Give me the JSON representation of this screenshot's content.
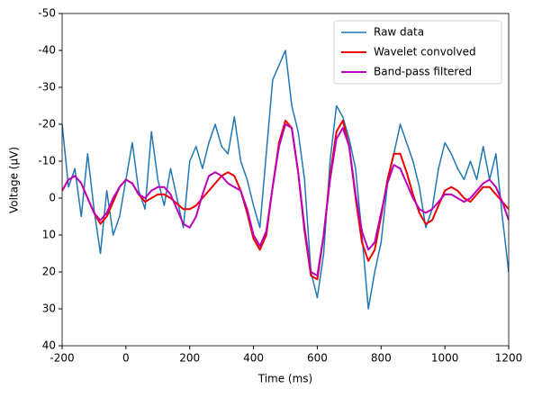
{
  "chart_data": {
    "type": "line",
    "xlabel": "Time (ms)",
    "ylabel": "Voltage (µV)",
    "x": [
      -200,
      -180,
      -160,
      -140,
      -120,
      -100,
      -80,
      -60,
      -40,
      -20,
      0,
      20,
      40,
      60,
      80,
      100,
      120,
      140,
      160,
      180,
      200,
      220,
      240,
      260,
      280,
      300,
      320,
      340,
      360,
      380,
      400,
      420,
      440,
      460,
      480,
      500,
      520,
      540,
      560,
      580,
      600,
      620,
      640,
      660,
      680,
      700,
      720,
      740,
      760,
      780,
      800,
      820,
      840,
      860,
      880,
      900,
      920,
      940,
      960,
      980,
      1000,
      1020,
      1040,
      1060,
      1080,
      1100,
      1120,
      1140,
      1160,
      1180,
      1200
    ],
    "series": [
      {
        "name": "Raw data",
        "color": "#1f77b4",
        "width": 1.5,
        "values": [
          -20,
          -3,
          -8,
          5,
          -12,
          3,
          15,
          -2,
          10,
          5,
          -5,
          -15,
          -2,
          3,
          -18,
          -5,
          2,
          -8,
          0,
          8,
          -10,
          -14,
          -8,
          -15,
          -20,
          -14,
          -12,
          -22,
          -10,
          -5,
          2,
          8,
          -12,
          -32,
          -36,
          -40,
          -25,
          -18,
          -5,
          20,
          27,
          15,
          -10,
          -25,
          -22,
          -16,
          -8,
          10,
          30,
          20,
          12,
          -4,
          -12,
          -20,
          -15,
          -10,
          -3,
          8,
          3,
          -8,
          -15,
          -12,
          -8,
          -5,
          -10,
          -5,
          -14,
          -5,
          -12,
          5,
          20
        ]
      },
      {
        "name": "Wavelet convolved",
        "color": "#ee0000",
        "width": 2,
        "values": [
          -2,
          -5,
          -6,
          -4,
          0,
          4,
          7,
          5,
          1,
          -3,
          -5,
          -4,
          -1,
          1,
          0,
          -1,
          -1,
          0,
          1.5,
          3,
          3,
          2,
          0,
          -2,
          -4,
          -6,
          -7,
          -6,
          -2,
          4,
          11,
          14,
          10,
          -3,
          -15,
          -21,
          -19,
          -7,
          9,
          21,
          22,
          10,
          -6,
          -18,
          -21,
          -14,
          0,
          12,
          17,
          14,
          5,
          -5,
          -12,
          -12,
          -7,
          -1,
          4,
          7,
          6,
          2,
          -2,
          -3,
          -2,
          0,
          1,
          -1,
          -3,
          -3,
          -1,
          1,
          3
        ]
      },
      {
        "name": "Band-pass filtered",
        "color": "#bb00bb",
        "width": 2,
        "values": [
          -2,
          -5,
          -6,
          -4,
          0,
          4,
          6,
          4,
          0,
          -3,
          -5,
          -4,
          -1,
          0,
          -2,
          -3,
          -3,
          -1,
          3,
          7,
          8,
          5,
          -1,
          -6,
          -7,
          -6,
          -4,
          -3,
          -2,
          3,
          10,
          13,
          9,
          -3,
          -14,
          -20,
          -19,
          -7,
          8,
          20,
          21,
          10,
          -5,
          -16,
          -19,
          -14,
          -1,
          9,
          14,
          12,
          4,
          -4,
          -9,
          -8,
          -4,
          0,
          3,
          4,
          3,
          1,
          -1,
          -1,
          0,
          1,
          0,
          -2,
          -4,
          -5,
          -3,
          1,
          6
        ]
      }
    ],
    "xlim": [
      -200,
      1200
    ],
    "xticks": [
      -200,
      0,
      200,
      400,
      600,
      800,
      1000,
      1200
    ],
    "ylim": [
      40,
      -50
    ],
    "yticks": [
      -50,
      -40,
      -30,
      -20,
      -10,
      0,
      10,
      20,
      30,
      40
    ],
    "legend": "upper right"
  }
}
